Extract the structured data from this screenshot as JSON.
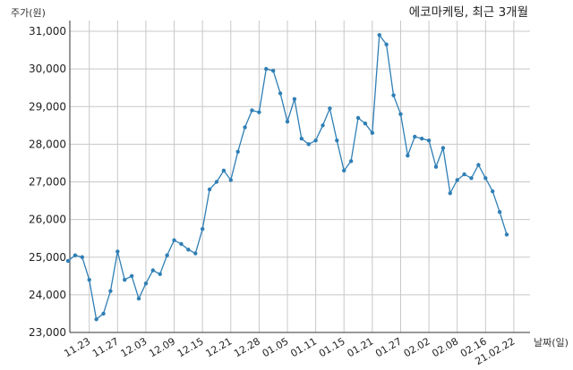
{
  "chart_data": {
    "type": "line",
    "title": "에코마케팅, 최근 3개월",
    "ylabel": "주가(원)",
    "xlabel": "날짜(일)",
    "ylim": [
      23000,
      31000
    ],
    "yticks": [
      23000,
      24000,
      25000,
      26000,
      27000,
      28000,
      29000,
      30000,
      31000
    ],
    "ytick_labels": [
      "23,000",
      "24,000",
      "25,000",
      "26,000",
      "27,000",
      "28,000",
      "29,000",
      "30,000",
      "31,000"
    ],
    "xtick_labels": [
      "11.23",
      "11.27",
      "12.03",
      "12.09",
      "12.15",
      "12.21",
      "12.28",
      "01.05",
      "01.11",
      "01.15",
      "01.21",
      "01.27",
      "02.02",
      "02.08",
      "02.16",
      "21.02.22"
    ],
    "xtick_index": [
      3,
      7,
      11,
      15,
      19,
      23,
      27,
      31,
      35,
      39,
      43,
      47,
      51,
      55,
      59,
      63
    ],
    "grid": true,
    "line_color": "#2f7fb5",
    "grid_color": "#c8c8c8",
    "series": [
      {
        "values": [
          24900,
          25050,
          25000,
          24400,
          23350,
          23500,
          24100,
          25150,
          24400,
          24500,
          23900,
          24300,
          24650,
          24550,
          25050,
          25450,
          25350,
          25200,
          25100,
          25750,
          26800,
          27000,
          27300,
          27050,
          27800,
          28450,
          28900,
          28850,
          30000,
          29950,
          29350,
          28600,
          29200,
          28150,
          28000,
          28100,
          28500,
          28950,
          28100,
          27300,
          27550,
          28700,
          28550,
          28300,
          30900,
          30650,
          29300,
          28800,
          27700,
          28200,
          28150,
          28100,
          27400,
          27900,
          26700,
          27050,
          27200,
          27100,
          27450,
          27100,
          26750,
          26200,
          25600
        ]
      }
    ]
  }
}
